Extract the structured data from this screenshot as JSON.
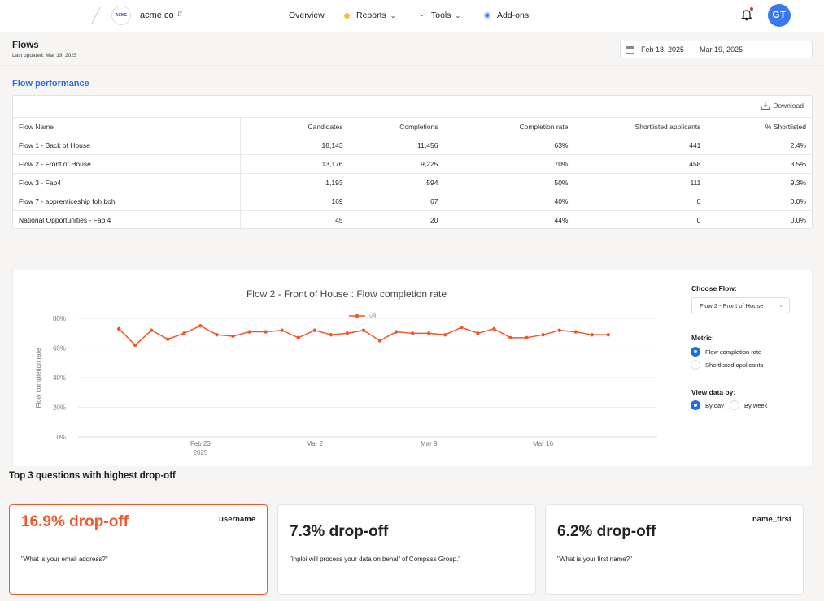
{
  "nav": {
    "org_name": "acme.co",
    "org_logo_text": "ACME",
    "links": [
      {
        "label": "Overview",
        "dot": ""
      },
      {
        "label": "Reports",
        "dot": "#f5c12e"
      },
      {
        "label": "Tools",
        "dot": "#3bb55a"
      },
      {
        "label": "Add-ons",
        "dot": "#3a78f0"
      }
    ],
    "user_initials": "GT"
  },
  "page": {
    "title": "Flows",
    "last_updated": "Last updated: Mar 19, 2025",
    "date_from": "Feb 18, 2025",
    "date_sep": "-",
    "date_to": "Mar 19, 2025"
  },
  "performance": {
    "section_title": "Flow performance",
    "download_label": "Download",
    "columns": [
      "Flow Name",
      "Candidates",
      "Completions",
      "Completion rate",
      "Shortlisted applicants",
      "% Shortlisted"
    ],
    "rows": [
      [
        "Flow 1 - Back of House",
        "18,143",
        "11,456",
        "63%",
        "441",
        "2.4%"
      ],
      [
        "Flow 2 - Front of House",
        "13,176",
        "9,225",
        "70%",
        "458",
        "3.5%"
      ],
      [
        "Flow 3 - Fab4",
        "1,193",
        "594",
        "50%",
        "111",
        "9.3%"
      ],
      [
        "Flow 7 - apprenticeship foh boh",
        "169",
        "67",
        "40%",
        "0",
        "0.0%"
      ],
      [
        "National Opportunities - Fab 4",
        "45",
        "20",
        "44%",
        "0",
        "0.0%"
      ]
    ]
  },
  "chart_controls": {
    "choose_flow_label": "Choose Flow:",
    "selected_flow": "Flow 2 - Front of House",
    "metric_label": "Metric:",
    "metric_options": [
      "Flow completion rate",
      "Shortlisted applicants"
    ],
    "metric_selected": 0,
    "view_label": "View data by:",
    "view_options": [
      "By day",
      "By week"
    ],
    "view_selected": 0
  },
  "chart_data": {
    "type": "line",
    "title": "Flow 2 - Front of House : Flow completion rate",
    "ylabel": "Flow completion rate",
    "xlabel": "",
    "ylim": [
      0,
      85
    ],
    "yticks": [
      "0%",
      "20%",
      "40%",
      "60%",
      "80%"
    ],
    "ytick_values": [
      0,
      20,
      40,
      60,
      80
    ],
    "xticks": [
      {
        "label": "Feb 23",
        "sublabel": "2025",
        "x": 5
      },
      {
        "label": "Mar 2",
        "sublabel": "",
        "x": 12
      },
      {
        "label": "Mar 9",
        "sublabel": "",
        "x": 19
      },
      {
        "label": "Mar 16",
        "sublabel": "",
        "x": 26
      }
    ],
    "grid": true,
    "legend_position": "top",
    "color": "#f2562a",
    "series": [
      {
        "name": "v8",
        "x": [
          0,
          1,
          2,
          3,
          4,
          5,
          6,
          7,
          8,
          9,
          10,
          11,
          12,
          13,
          14,
          15,
          16,
          17,
          18,
          19,
          20,
          21,
          22,
          23,
          24,
          25,
          26,
          27,
          28,
          29,
          30
        ],
        "values": [
          73,
          62,
          72,
          66,
          70,
          75,
          69,
          68,
          71,
          71,
          72,
          67,
          72,
          69,
          70,
          72,
          65,
          71,
          70,
          70,
          69,
          74,
          70,
          73,
          67,
          67,
          69,
          72,
          71,
          69,
          69
        ]
      }
    ]
  },
  "dropoff": {
    "title": "Top 3 questions with highest drop-off",
    "cards": [
      {
        "pct": "16.9% drop-off",
        "field": "username",
        "question": "\"What is your email address?\""
      },
      {
        "pct": "7.3% drop-off",
        "field": "",
        "question": "\"inploi will process your data on behalf of Compass Group.\""
      },
      {
        "pct": "6.2% drop-off",
        "field": "name_first",
        "question": "\"What is your first name?\""
      }
    ]
  }
}
